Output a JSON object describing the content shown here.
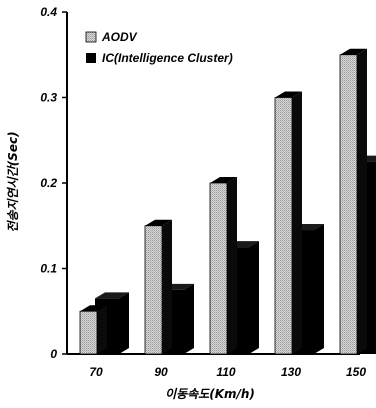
{
  "chart_data": {
    "type": "bar",
    "style": "3d-clustered",
    "categories": [
      "70",
      "90",
      "110",
      "130",
      "150"
    ],
    "series": [
      {
        "name": "AODV",
        "values": [
          0.05,
          0.15,
          0.2,
          0.3,
          0.35
        ],
        "color": "#c8c8c8"
      },
      {
        "name": "IC(Intelligence Cluster)",
        "values": [
          0.065,
          0.075,
          0.125,
          0.145,
          0.225
        ],
        "color": "#000000"
      }
    ],
    "xlabel": "이동속도(Km/h)",
    "ylabel": "전송지연시간(Sec)",
    "ylim": [
      0,
      0.4
    ],
    "yticks": [
      "0",
      "0.1",
      "0.2",
      "0.3",
      "0.4"
    ],
    "legend_position": "top-left",
    "grid": false
  }
}
